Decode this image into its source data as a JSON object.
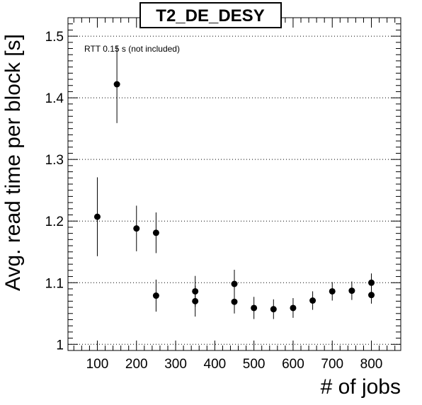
{
  "chart_data": {
    "type": "scatter",
    "title": "T2_DE_DESY",
    "xlabel": "# of jobs",
    "ylabel": "Avg. read time per block [s]",
    "annotation": "RTT 0.15 s (not included)",
    "xlim": [
      25,
      875
    ],
    "ylim": [
      0.99,
      1.53
    ],
    "x_ticks": [
      100,
      200,
      300,
      400,
      500,
      600,
      700,
      800
    ],
    "y_ticks": [
      1.0,
      1.1,
      1.2,
      1.3,
      1.4,
      1.5
    ],
    "y_tick_labels": [
      "1",
      "1.1",
      "1.2",
      "1.3",
      "1.4",
      "1.5"
    ],
    "grid": "horizontal dotted",
    "points": [
      {
        "x": 100,
        "y": 1.207,
        "err": 0.064
      },
      {
        "x": 150,
        "y": 1.422,
        "err": 0.063
      },
      {
        "x": 200,
        "y": 1.188,
        "err": 0.037
      },
      {
        "x": 250,
        "y": 1.181,
        "err": 0.033
      },
      {
        "x": 250,
        "y": 1.079,
        "err": 0.026
      },
      {
        "x": 350,
        "y": 1.086,
        "err": 0.025
      },
      {
        "x": 350,
        "y": 1.07,
        "err": 0.025
      },
      {
        "x": 450,
        "y": 1.098,
        "err": 0.023
      },
      {
        "x": 450,
        "y": 1.069,
        "err": 0.019
      },
      {
        "x": 500,
        "y": 1.059,
        "err": 0.018
      },
      {
        "x": 550,
        "y": 1.057,
        "err": 0.016
      },
      {
        "x": 600,
        "y": 1.059,
        "err": 0.016
      },
      {
        "x": 650,
        "y": 1.071,
        "err": 0.015
      },
      {
        "x": 700,
        "y": 1.086,
        "err": 0.015
      },
      {
        "x": 750,
        "y": 1.087,
        "err": 0.015
      },
      {
        "x": 800,
        "y": 1.1,
        "err": 0.015
      },
      {
        "x": 800,
        "y": 1.08,
        "err": 0.014
      }
    ]
  }
}
